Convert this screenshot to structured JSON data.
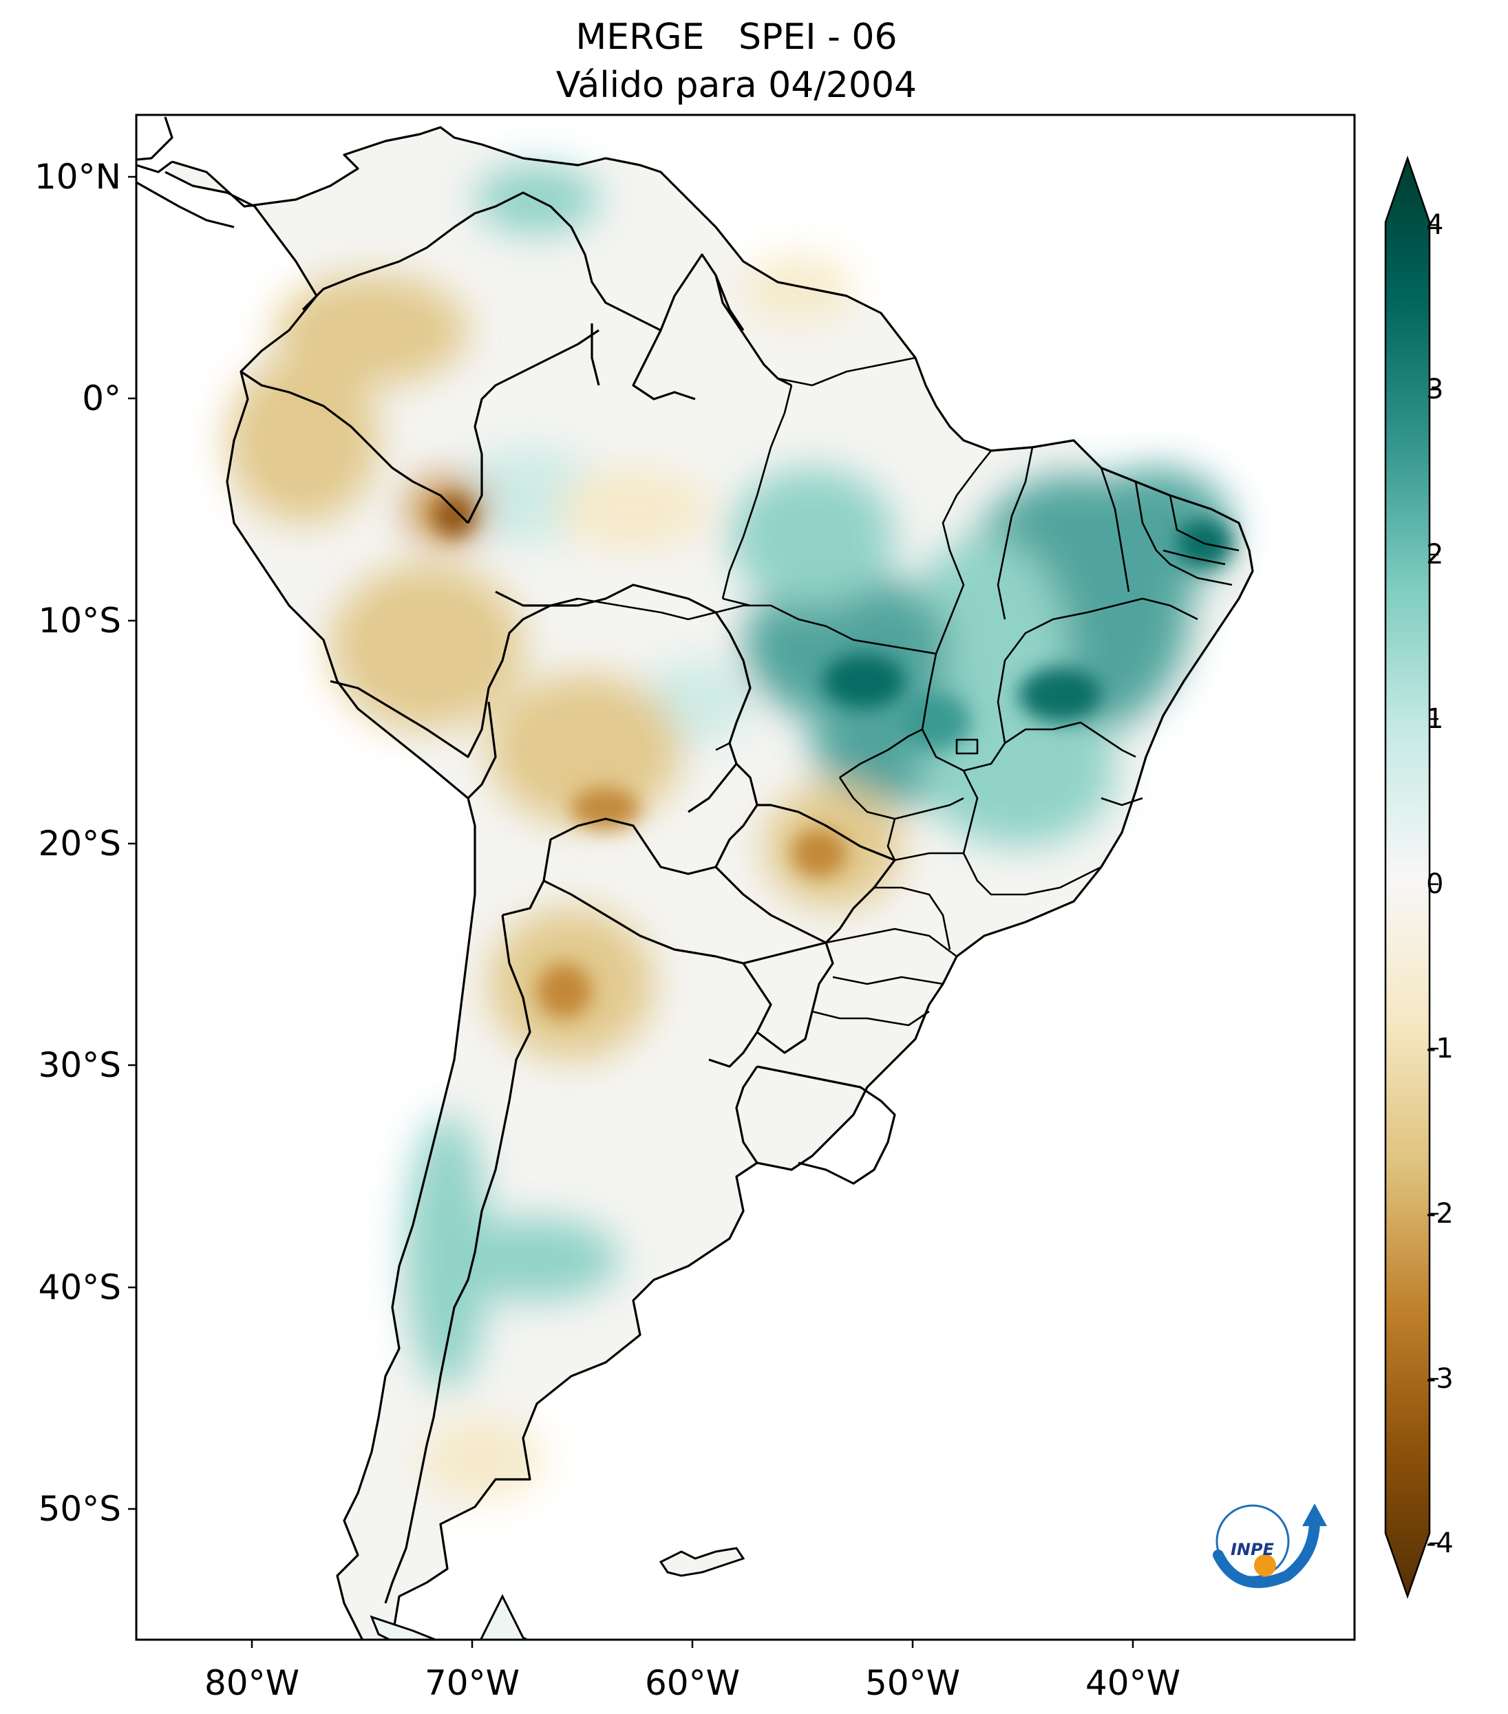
{
  "title": {
    "line1": "MERGE   SPEI - 06",
    "line2": "Válido para 04/2004"
  },
  "map": {
    "region": "South America",
    "lat_labels": [
      "10°N",
      "0°",
      "10°S",
      "20°S",
      "30°S",
      "40°S",
      "50°S"
    ],
    "lon_labels": [
      "80°W",
      "70°W",
      "60°W",
      "50°W",
      "40°W"
    ],
    "features": [
      "coastline",
      "country-borders",
      "brazil-state-borders",
      "falkland-islands",
      "tierra-del-fuego"
    ],
    "anomaly_regions": [
      {
        "area": "Northeast Brazil",
        "sign": "wet"
      },
      {
        "area": "Central Brazil / Goiás",
        "sign": "wet"
      },
      {
        "area": "Southern Chile / Patagonia west",
        "sign": "wet"
      },
      {
        "area": "Colombia / Ecuador / Peru",
        "sign": "dry"
      },
      {
        "area": "Bolivia",
        "sign": "dry"
      },
      {
        "area": "Mato Grosso do Sul / Paraguay",
        "sign": "dry"
      },
      {
        "area": "Northern Argentina",
        "sign": "dry"
      },
      {
        "area": "Western Amazon",
        "sign": "dry"
      }
    ]
  },
  "colorbar": {
    "ticks": [
      "4",
      "3",
      "2",
      "1",
      "0",
      "-1",
      "-2",
      "-3",
      "-4"
    ],
    "min": -4,
    "max": 4,
    "extend": "both",
    "colors": [
      "#543005",
      "#8c510a",
      "#bf812d",
      "#dfc27d",
      "#f6e8c3",
      "#f5f5f5",
      "#c7eae5",
      "#80cdc1",
      "#35978f",
      "#01665e",
      "#003c30"
    ]
  },
  "logo": {
    "text": "INPE"
  }
}
